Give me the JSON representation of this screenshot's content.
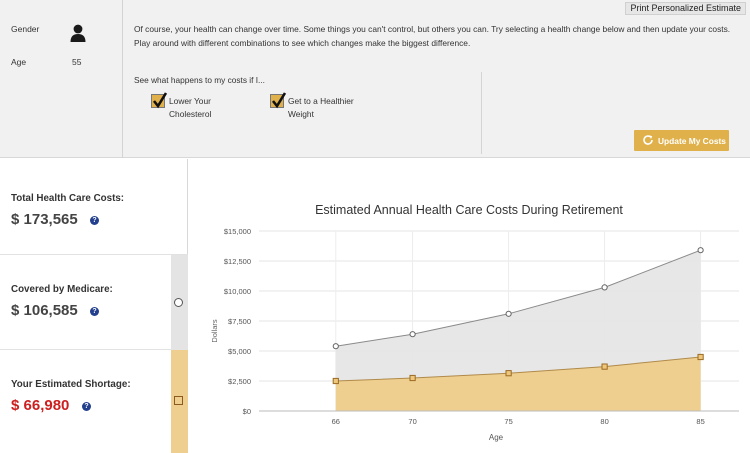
{
  "header": {
    "print_button": "Print Personalized Estimate"
  },
  "profile": {
    "gender_label": "Gender",
    "gender_icon": "person-icon",
    "age_label": "Age",
    "age_value": "55"
  },
  "intro_text": "Of course, your health can change over time. Some things you can't control, but others you can. Try selecting a health change below and then update your costs. Play around with different combinations to see which changes make the biggest difference.",
  "options": {
    "prompt": "See what happens to my costs if I...",
    "items": [
      {
        "label_line1": "Lower Your",
        "label_line2": "Cholesterol",
        "checked": true
      },
      {
        "label_line1": "Get to a Healthier",
        "label_line2": "Weight",
        "checked": true
      }
    ]
  },
  "update_button": {
    "label": "Update My Costs",
    "icon": "refresh-icon"
  },
  "summary": {
    "total": {
      "label": "Total Health Care Costs:",
      "value": "$ 173,565"
    },
    "medicare": {
      "label": "Covered by Medicare:",
      "value": "$ 106,585",
      "legend_marker": "circle"
    },
    "shortage": {
      "label": "Your Estimated Shortage:",
      "value": "$ 66,980",
      "legend_marker": "square"
    },
    "help_glyph": "?"
  },
  "colors": {
    "accent_gold": "#e0b14a",
    "shortage_fill": "#efcf8f",
    "medicare_fill": "#e6e6e6",
    "shortage_red": "#cc1f1f",
    "help_blue": "#23408f"
  },
  "chart_data": {
    "type": "area",
    "title": "Estimated Annual Health Care Costs During Retirement",
    "xlabel": "Age",
    "ylabel": "Dollars",
    "x": [
      66,
      70,
      75,
      80,
      85
    ],
    "xlim": [
      62,
      87
    ],
    "ylim": [
      0,
      15000
    ],
    "yticks": [
      0,
      2500,
      5000,
      7500,
      10000,
      12500,
      15000
    ],
    "ytick_labels": [
      "$0",
      "$2,500",
      "$5,000",
      "$7,500",
      "$10,000",
      "$12,500",
      "$15,000"
    ],
    "xtick_labels": [
      "66",
      "70",
      "75",
      "80",
      "85"
    ],
    "grid": true,
    "series": [
      {
        "marker": "circle",
        "values": [
          5400,
          6400,
          8100,
          10300,
          13400
        ]
      },
      {
        "marker": "square",
        "values": [
          2500,
          2750,
          3150,
          3700,
          4500
        ]
      }
    ]
  }
}
